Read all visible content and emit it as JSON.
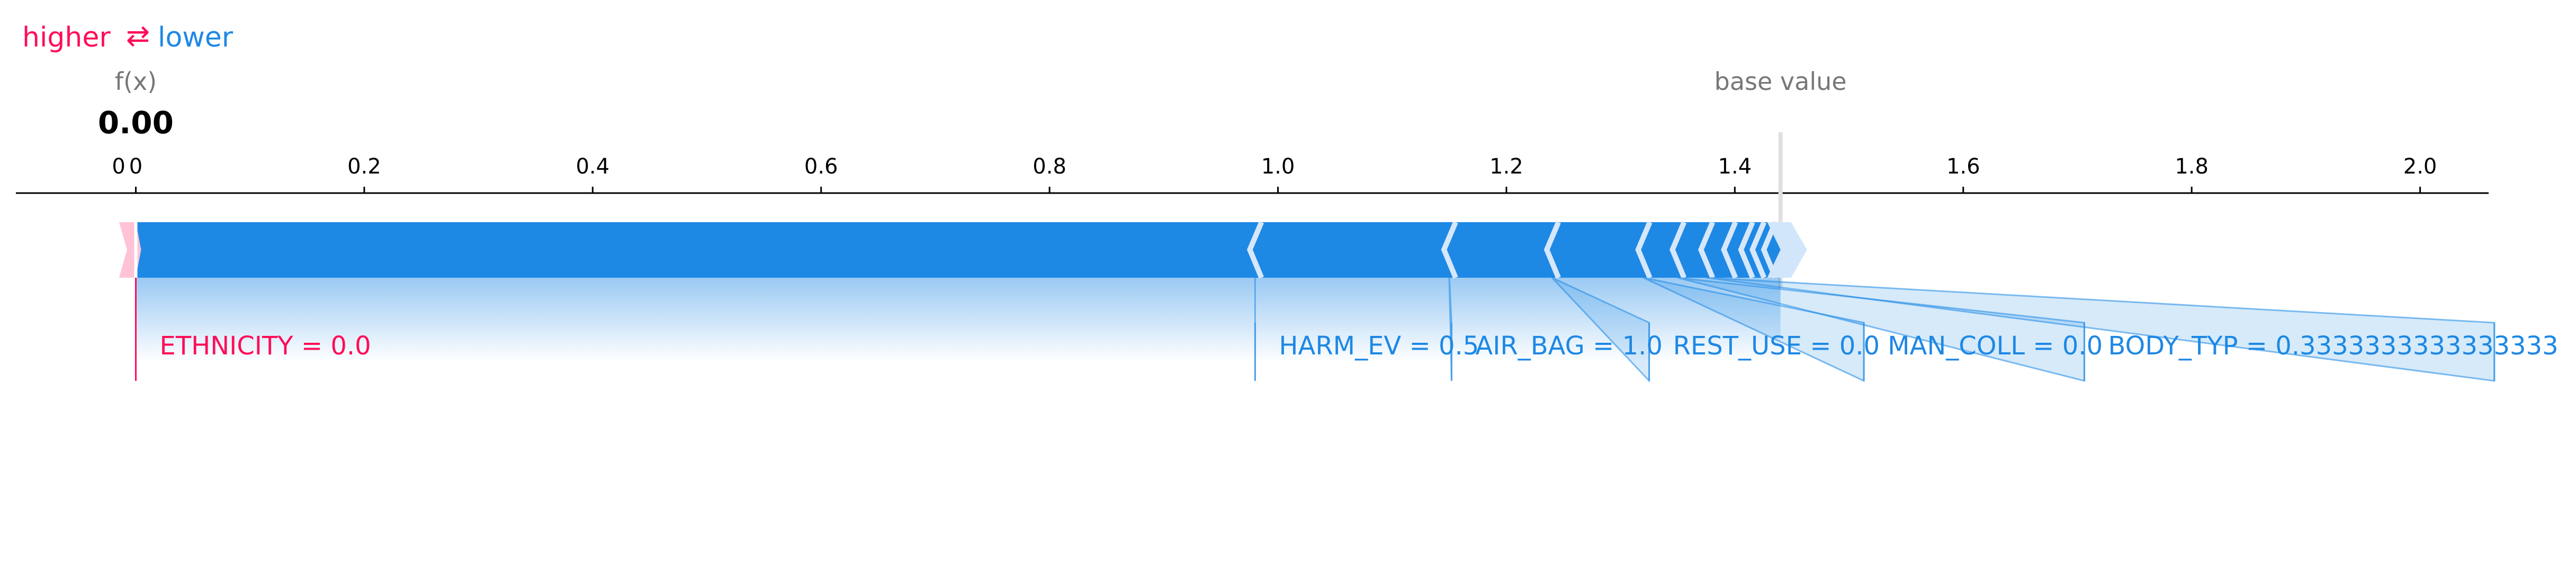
{
  "chart_data": {
    "type": "force-plot",
    "legend": {
      "higher_label": "higher",
      "arrows": "⇄",
      "lower_label": "lower",
      "higher_color": "#ff0d57",
      "lower_color": "#1e88e5"
    },
    "output_name": "f(x)",
    "output_value": "0.00",
    "output_x": 0.0,
    "base_value_label": "base value",
    "base_value_x": 1.44,
    "xlim": [
      -0.105,
      2.06
    ],
    "ticks": [
      {
        "x": 0,
        "label": "0"
      },
      {
        "x": 0.2,
        "label": "0.2"
      },
      {
        "x": 0.4,
        "label": "0.4"
      },
      {
        "x": 0.6,
        "label": "0.6"
      },
      {
        "x": 0.8,
        "label": "0.8"
      },
      {
        "x": 1.0,
        "label": "1.0"
      },
      {
        "x": 1.2,
        "label": "1.2"
      },
      {
        "x": 1.4,
        "label": "1.4"
      },
      {
        "x": 1.6,
        "label": "1.6"
      },
      {
        "x": 1.8,
        "label": "1.8"
      },
      {
        "x": 2.0,
        "label": "2.0"
      }
    ],
    "output_tick": {
      "x": -0.015,
      "label": "0"
    },
    "positive_features": [
      {
        "start": -0.01,
        "end": 0.0
      }
    ],
    "negative_boundaries": [
      0.0,
      0.98,
      1.15,
      1.24,
      1.32,
      1.35,
      1.375,
      1.395,
      1.41,
      1.42,
      1.43,
      1.44
    ],
    "labeled_features": [
      {
        "name": "ETHNICITY  = 0.0",
        "effect_start": -0.01,
        "effect_end": 0.0,
        "label_x": 0.0,
        "sign": "positive"
      },
      {
        "name": "HARM_EV = 0.5",
        "effect_start": 0.98,
        "effect_end": 0.98,
        "label_x": 0.98,
        "sign": "negative"
      },
      {
        "name": "AIR_BAG = 1.0",
        "effect_start": 1.15,
        "effect_end": 1.15,
        "label_x": 1.152,
        "sign": "negative"
      },
      {
        "name": "REST_USE = 0.0",
        "effect_start": 1.24,
        "effect_end": 1.24,
        "label_x": 1.325,
        "sign": "negative"
      },
      {
        "name": "MAN_COLL = 0.0",
        "effect_start": 1.32,
        "effect_end": 1.32,
        "label_x": 1.513,
        "sign": "negative"
      },
      {
        "name": "BODY_TYP = 0.3333333333333333",
        "effect_start": 1.35,
        "effect_end": 1.35,
        "label_x": 1.706,
        "sign": "negative"
      },
      {
        "name": "",
        "effect_start": 1.375,
        "effect_end": 1.375,
        "label_x": 2.065,
        "sign": "negative"
      }
    ]
  }
}
